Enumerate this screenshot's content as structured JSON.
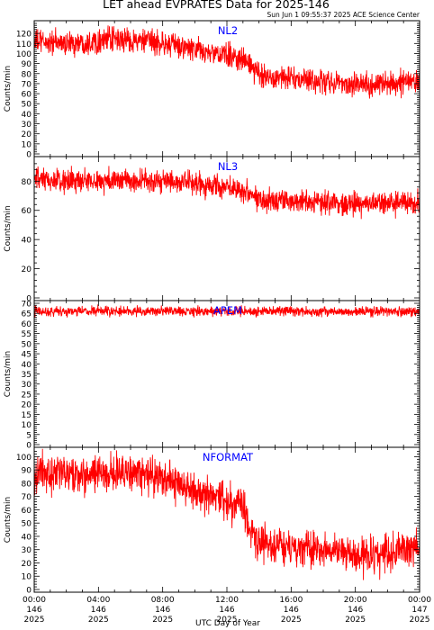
{
  "title": "LET ahead EVPRATES Data for 2025-146",
  "timestamp": "Sun Jun  1 09:55:37 2025 ACE Science Center",
  "x_axis_label": "UTC Day of Year",
  "colors": {
    "series": "#ff0000",
    "panel_label": "#0000ff",
    "axes": "#000000"
  },
  "x_ticks": [
    {
      "time": "00:00",
      "day": "146",
      "year": "2025"
    },
    {
      "time": "04:00",
      "day": "146",
      "year": "2025"
    },
    {
      "time": "08:00",
      "day": "146",
      "year": "2025"
    },
    {
      "time": "12:00",
      "day": "146",
      "year": "2025"
    },
    {
      "time": "16:00",
      "day": "146",
      "year": "2025"
    },
    {
      "time": "20:00",
      "day": "146",
      "year": "2025"
    },
    {
      "time": "00:00",
      "day": "147",
      "year": "2025"
    }
  ],
  "chart_data": [
    {
      "type": "line",
      "panel_label": "NL2",
      "ylabel": "Counts/min",
      "ylim": [
        0,
        130
      ],
      "yticks": [
        0,
        10,
        20,
        30,
        40,
        50,
        60,
        70,
        80,
        90,
        100,
        110,
        120
      ],
      "xlim_hours": [
        0,
        24
      ],
      "x_hours": [
        0,
        1,
        2,
        3,
        4,
        5,
        6,
        7,
        8,
        9,
        10,
        11,
        12,
        13,
        13.5,
        14,
        15,
        16,
        17,
        18,
        19,
        20,
        21,
        22,
        23,
        24
      ],
      "values": [
        112,
        111,
        110,
        111,
        113,
        114,
        113,
        112,
        110,
        107,
        104,
        100,
        98,
        95,
        86,
        79,
        77,
        75,
        73,
        72,
        71,
        70,
        69,
        70,
        71,
        73
      ],
      "noise": 6
    },
    {
      "type": "line",
      "panel_label": "NL3",
      "ylabel": "Counts/min",
      "ylim": [
        0,
        95
      ],
      "yticks": [
        0,
        20,
        40,
        60,
        80
      ],
      "xlim_hours": [
        0,
        24
      ],
      "x_hours": [
        0,
        1,
        2,
        3,
        4,
        5,
        6,
        7,
        8,
        9,
        10,
        11,
        12,
        13,
        13.5,
        14,
        15,
        16,
        17,
        18,
        19,
        20,
        21,
        22,
        23,
        24
      ],
      "values": [
        81,
        80,
        80,
        80,
        80,
        81,
        80,
        80,
        80,
        79,
        78,
        77,
        76,
        75,
        71,
        68,
        67,
        67,
        66,
        66,
        65,
        65,
        64,
        65,
        65,
        66
      ],
      "noise": 4
    },
    {
      "type": "line",
      "panel_label": "APEM",
      "ylabel": "Counts/min",
      "ylim": [
        0,
        70
      ],
      "yticks": [
        0,
        5,
        10,
        15,
        20,
        25,
        30,
        35,
        40,
        45,
        50,
        55,
        60,
        65,
        70
      ],
      "xlim_hours": [
        0,
        24
      ],
      "x_hours": [
        0,
        4,
        8,
        12,
        16,
        20,
        24
      ],
      "values": [
        66,
        66,
        66,
        66,
        66,
        66,
        66
      ],
      "noise": 1.2
    },
    {
      "type": "line",
      "panel_label": "NFORMAT",
      "ylabel": "Counts/min",
      "ylim": [
        0,
        105
      ],
      "yticks": [
        0,
        10,
        20,
        30,
        40,
        50,
        60,
        70,
        80,
        90,
        100
      ],
      "xlim_hours": [
        0,
        24
      ],
      "x_hours": [
        0,
        1,
        2,
        3,
        4,
        5,
        6,
        7,
        8,
        9,
        10,
        11,
        12,
        13,
        13.5,
        14,
        15,
        16,
        17,
        18,
        19,
        20,
        21,
        22,
        23,
        24
      ],
      "values": [
        88,
        87,
        86,
        85,
        87,
        89,
        87,
        86,
        84,
        80,
        74,
        69,
        65,
        62,
        45,
        36,
        34,
        32,
        31,
        30,
        28,
        26,
        25,
        27,
        29,
        34
      ],
      "noise": 7
    }
  ]
}
